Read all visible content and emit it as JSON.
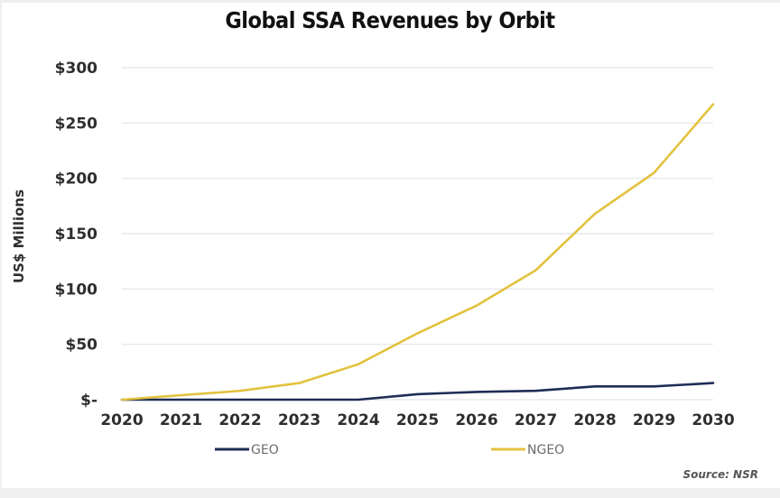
{
  "chart_data": {
    "type": "line",
    "title": "Global SSA Revenues by Orbit",
    "xlabel": "",
    "ylabel": "US$ Millions",
    "x": [
      "2020",
      "2021",
      "2022",
      "2023",
      "2024",
      "2025",
      "2026",
      "2027",
      "2028",
      "2029",
      "2030"
    ],
    "series": [
      {
        "name": "GEO",
        "color": "#1f2d55",
        "values": [
          0,
          0,
          0,
          0,
          0,
          5,
          7,
          8,
          12,
          12,
          15
        ]
      },
      {
        "name": "NGEO",
        "color": "#e2c23f",
        "values": [
          0,
          4,
          8,
          15,
          32,
          60,
          85,
          117,
          168,
          205,
          267
        ]
      }
    ],
    "ylim": [
      0,
      300
    ],
    "yticks": [
      0,
      50,
      100,
      150,
      200,
      250,
      300
    ],
    "ytick_labels": [
      "$-",
      "$50",
      "$100",
      "$150",
      "$200",
      "$250",
      "$300"
    ],
    "grid": true,
    "legend_position": "bottom",
    "source": "Source: NSR"
  }
}
